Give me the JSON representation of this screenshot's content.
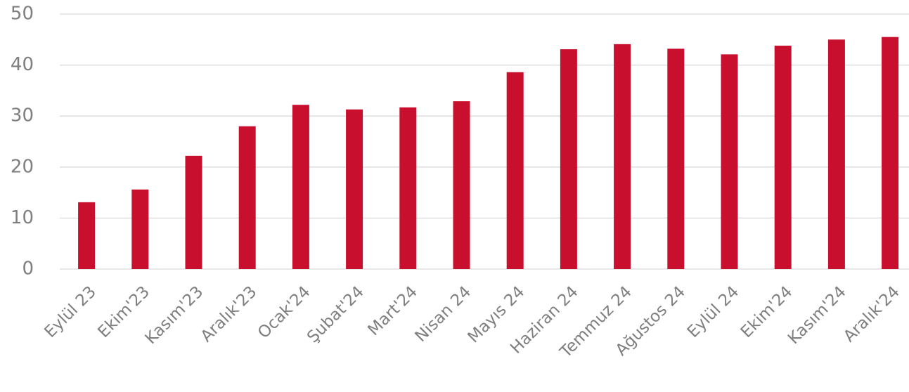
{
  "chart_data": {
    "type": "bar",
    "categories": [
      "Eylül 23",
      "Ekim'23",
      "Kasım'23",
      "Aralık'23",
      "Ocak'24",
      "Şubat'24",
      "Mart'24",
      "Nisan 24",
      "Mayıs 24",
      "Haziran 24",
      "Temmuz 24",
      "Ağustos 24",
      "Eylül 24",
      "Ekim'24",
      "Kasım'24",
      "Aralık'24"
    ],
    "values": [
      13.1,
      15.6,
      22.2,
      28.0,
      32.2,
      31.3,
      31.7,
      32.9,
      38.6,
      43.1,
      44.1,
      43.2,
      42.1,
      43.8,
      45.0,
      45.5
    ],
    "color": "#c8102e",
    "ylim": [
      0,
      50
    ],
    "yticks": [
      0,
      10,
      20,
      30,
      40,
      50
    ],
    "grid": true
  }
}
